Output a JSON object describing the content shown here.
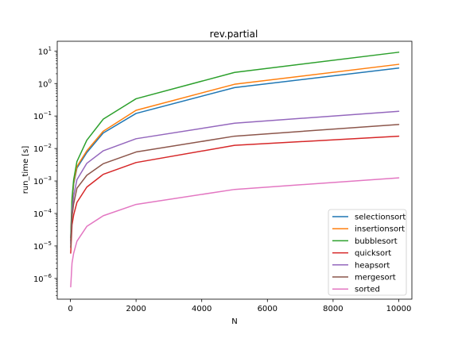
{
  "chart_data": {
    "type": "line",
    "title": "rev.partial",
    "xlabel": "N",
    "ylabel": "run_time [s]",
    "xlim": [
      -400,
      10400
    ],
    "xticks": [
      0,
      2000,
      4000,
      6000,
      8000,
      10000
    ],
    "xtick_labels": [
      "0",
      "2000",
      "4000",
      "6000",
      "8000",
      "10000"
    ],
    "yscale": "log",
    "ylim": [
      2.3e-07,
      20
    ],
    "yticks": [
      1e-06,
      1e-05,
      0.0001,
      0.001,
      0.01,
      0.1,
      1,
      10
    ],
    "ytick_labels": [
      {
        "base": "10",
        "exp": "−6"
      },
      {
        "base": "10",
        "exp": "−5"
      },
      {
        "base": "10",
        "exp": "−4"
      },
      {
        "base": "10",
        "exp": "−3"
      },
      {
        "base": "10",
        "exp": "−2"
      },
      {
        "base": "10",
        "exp": "−1"
      },
      {
        "base": "10",
        "exp": "0"
      },
      {
        "base": "10",
        "exp": "1"
      }
    ],
    "grid": false,
    "legend_position": "lower-right",
    "x": [
      10,
      50,
      100,
      200,
      500,
      1000,
      2000,
      5000,
      10000
    ],
    "series": [
      {
        "name": "selectionsort",
        "color": "#1f77b4",
        "values": [
          1.4e-05,
          0.00022,
          0.0008,
          0.0025,
          0.0075,
          0.03,
          0.12,
          0.75,
          3.0
        ]
      },
      {
        "name": "insertionsort",
        "color": "#ff7f0e",
        "values": [
          1.5e-05,
          0.00025,
          0.0009,
          0.0028,
          0.0085,
          0.034,
          0.15,
          0.95,
          3.9
        ]
      },
      {
        "name": "bubblesort",
        "color": "#2ca02c",
        "values": [
          1.8e-05,
          0.0003,
          0.0011,
          0.004,
          0.018,
          0.08,
          0.34,
          2.2,
          9.2
        ]
      },
      {
        "name": "quicksort",
        "color": "#d62728",
        "values": [
          6e-06,
          4.5e-05,
          9e-05,
          0.00022,
          0.00065,
          0.0016,
          0.0037,
          0.0125,
          0.024
        ]
      },
      {
        "name": "heapsort",
        "color": "#9467bd",
        "values": [
          1.2e-05,
          0.00012,
          0.00035,
          0.0011,
          0.0035,
          0.0085,
          0.02,
          0.06,
          0.14
        ]
      },
      {
        "name": "mergesort",
        "color": "#8c564b",
        "values": [
          9e-06,
          8e-05,
          0.0002,
          0.0006,
          0.0015,
          0.0034,
          0.0078,
          0.024,
          0.055
        ]
      },
      {
        "name": "sorted",
        "color": "#e377c2",
        "values": [
          5.5e-07,
          3e-06,
          6e-06,
          1.4e-05,
          4e-05,
          8.5e-05,
          0.00019,
          0.00055,
          0.00125
        ]
      }
    ]
  }
}
